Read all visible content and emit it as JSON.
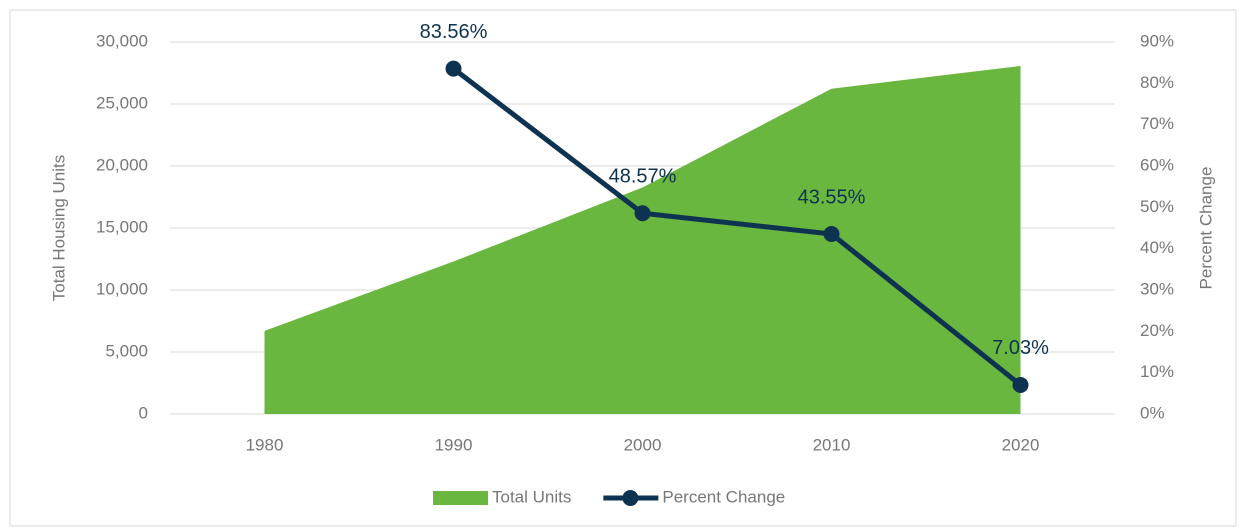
{
  "chart_data": {
    "type": "area_line",
    "categories": [
      "1980",
      "1990",
      "2000",
      "2010",
      "2020"
    ],
    "series": [
      {
        "name": "Total Units",
        "type": "area",
        "color": "#6ab73f",
        "values": [
          6700,
          12300,
          18270,
          26230,
          28070
        ]
      },
      {
        "name": "Percent Change",
        "type": "line",
        "axis": "y2",
        "color": "#0e3350",
        "values": [
          null,
          83.56,
          48.57,
          43.55,
          7.03
        ],
        "value_labels": [
          null,
          "83.56%",
          "48.57%",
          "43.55%",
          "7.03%"
        ]
      }
    ],
    "y_label": "Total Housing Units",
    "y2_label": "Percent Change",
    "ylim": [
      0,
      30000
    ],
    "yticks": [
      0,
      {
        "value": 5000,
        "label": "5,000"
      },
      {
        "value": 10000,
        "label": "10,000"
      },
      {
        "value": 15000,
        "label": "15,000"
      },
      {
        "value": 20000,
        "label": "20,000"
      },
      {
        "value": 25000,
        "label": "25,000"
      },
      {
        "value": 30000,
        "label": "30,000"
      }
    ],
    "y2lim": [
      0,
      90
    ],
    "y2ticks": [
      {
        "value": 0,
        "label": "0%"
      },
      {
        "value": 10,
        "label": "10%"
      },
      {
        "value": 20,
        "label": "20%"
      },
      {
        "value": 30,
        "label": "30%"
      },
      {
        "value": 40,
        "label": "40%"
      },
      {
        "value": 50,
        "label": "50%"
      },
      {
        "value": 60,
        "label": "60%"
      },
      {
        "value": 70,
        "label": "70%"
      },
      {
        "value": 80,
        "label": "80%"
      },
      {
        "value": 90,
        "label": "90%"
      }
    ],
    "grid": true,
    "legend": "bottom"
  }
}
